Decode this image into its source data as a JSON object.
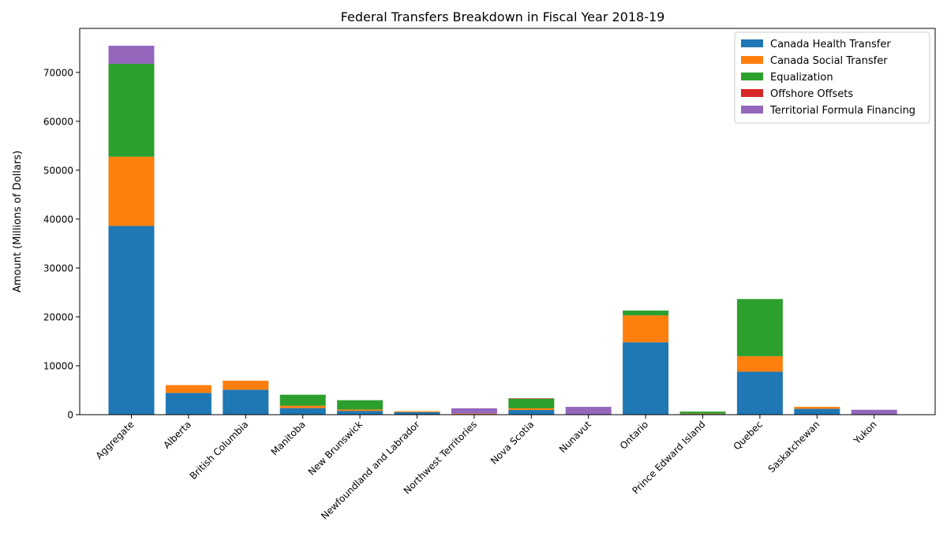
{
  "chart_data": {
    "type": "bar",
    "stacked": true,
    "title": "Federal Transfers Breakdown in Fiscal Year 2018-19",
    "xlabel": "",
    "ylabel": "Amount (Millions of Dollars)",
    "ylim": [
      0,
      79000
    ],
    "yticks": [
      0,
      10000,
      20000,
      30000,
      40000,
      50000,
      60000,
      70000
    ],
    "grid": false,
    "legend_position": "top-right",
    "categories": [
      "Aggregate",
      "Alberta",
      "British Columbia",
      "Manitoba",
      "New Brunswick",
      "Newfoundland and Labrador",
      "Northwest Territories",
      "Nova Scotia",
      "Nunavut",
      "Ontario",
      "Prince Edward Island",
      "Quebec",
      "Saskatchewan",
      "Yukon"
    ],
    "series": [
      {
        "name": "Canada Health Transfer",
        "color": "#1f77b4",
        "values": [
          38600,
          4450,
          5100,
          1350,
          780,
          530,
          45,
          960,
          40,
          14800,
          160,
          8800,
          1200,
          40
        ]
      },
      {
        "name": "Canada Social Transfer",
        "color": "#ff7f0e",
        "values": [
          14150,
          1600,
          1850,
          480,
          280,
          180,
          160,
          350,
          15,
          5500,
          55,
          3150,
          400,
          15
        ]
      },
      {
        "name": "Equalization",
        "color": "#2ca02c",
        "values": [
          19000,
          0,
          0,
          2250,
          1900,
          0,
          0,
          2000,
          0,
          1000,
          420,
          11700,
          0,
          0
        ]
      },
      {
        "name": "Offshore Offsets",
        "color": "#d62728",
        "values": [
          0,
          0,
          0,
          0,
          0,
          0,
          0,
          30,
          0,
          0,
          0,
          0,
          0,
          0
        ]
      },
      {
        "name": "Territorial Formula Financing",
        "color": "#9467bd",
        "values": [
          3700,
          0,
          0,
          0,
          0,
          0,
          1100,
          0,
          1550,
          0,
          0,
          0,
          0,
          950
        ]
      }
    ]
  }
}
